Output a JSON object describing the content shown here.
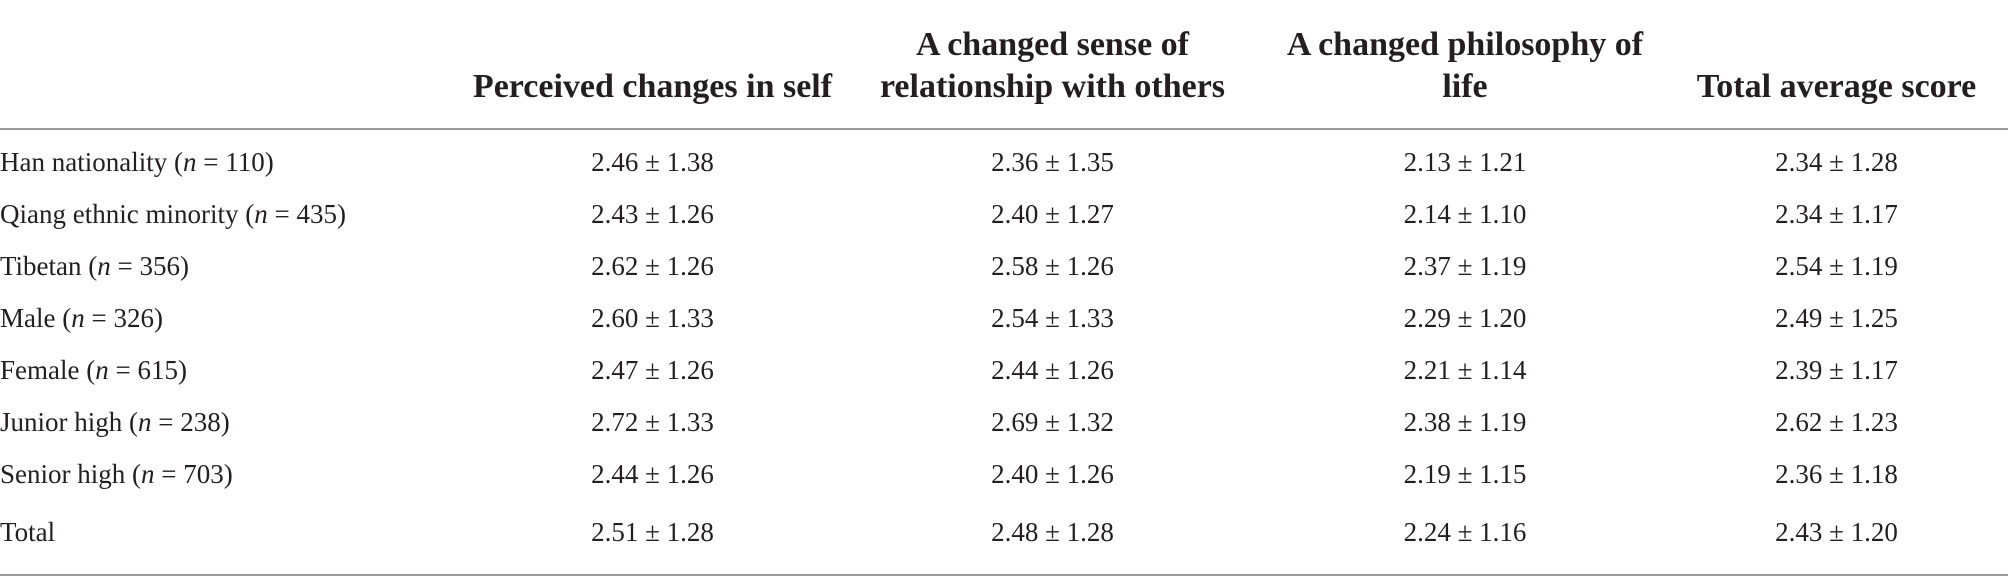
{
  "table": {
    "headers": [
      "",
      "Perceived changes in self",
      "A changed sense of relationship with others",
      "A changed philosophy of life",
      "Total average score"
    ],
    "rows": [
      {
        "group": "Han nationality",
        "n_label": "n",
        "n_value": "110",
        "values": [
          "2.46 ± 1.38",
          "2.36 ± 1.35",
          "2.13 ± 1.21",
          "2.34 ± 1.28"
        ]
      },
      {
        "group": "Qiang ethnic minority",
        "n_label": "n",
        "n_value": "435",
        "values": [
          "2.43 ± 1.26",
          "2.40 ± 1.27",
          "2.14 ± 1.10",
          "2.34 ± 1.17"
        ]
      },
      {
        "group": "Tibetan",
        "n_label": "n",
        "n_value": "356",
        "values": [
          "2.62 ± 1.26",
          "2.58 ± 1.26",
          "2.37 ± 1.19",
          "2.54 ± 1.19"
        ]
      },
      {
        "group": "Male",
        "n_label": "n",
        "n_value": "326",
        "values": [
          "2.60 ± 1.33",
          "2.54 ± 1.33",
          "2.29 ± 1.20",
          "2.49 ± 1.25"
        ]
      },
      {
        "group": "Female",
        "n_label": "n",
        "n_value": "615",
        "values": [
          "2.47 ± 1.26",
          "2.44 ± 1.26",
          "2.21 ± 1.14",
          "2.39 ± 1.17"
        ]
      },
      {
        "group": "Junior high",
        "n_label": "n",
        "n_value": "238",
        "values": [
          "2.72 ± 1.33",
          "2.69 ± 1.32",
          "2.38 ± 1.19",
          "2.62 ± 1.23"
        ]
      },
      {
        "group": "Senior high",
        "n_label": "n",
        "n_value": "703",
        "values": [
          "2.44 ± 1.26",
          "2.40 ± 1.26",
          "2.19 ± 1.15",
          "2.36 ± 1.18"
        ]
      },
      {
        "group": "Total",
        "n_label": "",
        "n_value": "",
        "values": [
          "2.51 ± 1.28",
          "2.48 ± 1.28",
          "2.24 ± 1.16",
          "2.43 ± 1.20"
        ]
      }
    ]
  }
}
